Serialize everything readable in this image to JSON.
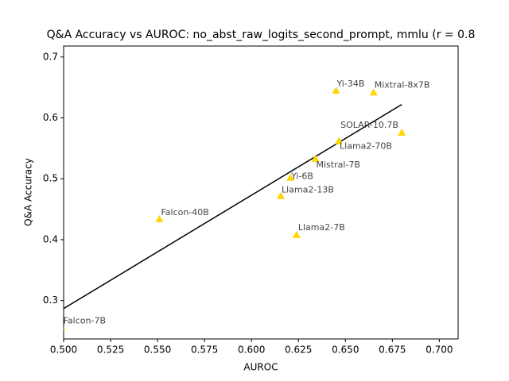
{
  "chart_data": {
    "type": "scatter",
    "title": "Q&A Accuracy vs AUROC: no_abst_raw_logits_second_prompt, mmlu (r = 0.8",
    "x_label": "AUROC",
    "y_label": "Q&A Accuracy",
    "labels": [
      "Falcon-7B",
      "Falcon-40B",
      "Llama2-7B",
      "Llama2-13B",
      "Yi-6B",
      "Mistral-7B",
      "Llama2-70B",
      "SOLAR-10.7B",
      "Yi-34B",
      "Mixtral-8x7B"
    ],
    "x": [
      0.499,
      0.551,
      0.624,
      0.6156,
      0.6207,
      0.634,
      0.6465,
      0.68,
      0.645,
      0.665
    ],
    "y": [
      0.256,
      0.434,
      0.408,
      0.472,
      0.502,
      0.533,
      0.562,
      0.576,
      0.645,
      0.642
    ],
    "color": "#ffd700",
    "fit_line": {
      "x": [
        0.499,
        0.68
      ],
      "y": [
        0.285,
        0.622
      ],
      "color": "#000000"
    },
    "xlim": [
      0.5,
      0.71
    ],
    "ylim": [
      0.237,
      0.718
    ],
    "xticks": [
      {
        "value": 0.5,
        "label": "0.500"
      },
      0.525,
      {
        "value": 0.55,
        "label": "0.550"
      },
      0.575,
      {
        "value": 0.6,
        "label": "0.600"
      },
      0.625,
      {
        "value": 0.65,
        "label": "0.650"
      },
      0.675,
      {
        "value": 0.7,
        "label": "0.700"
      }
    ],
    "yticks": [
      0.3,
      0.4,
      0.5,
      0.6,
      0.7
    ]
  }
}
